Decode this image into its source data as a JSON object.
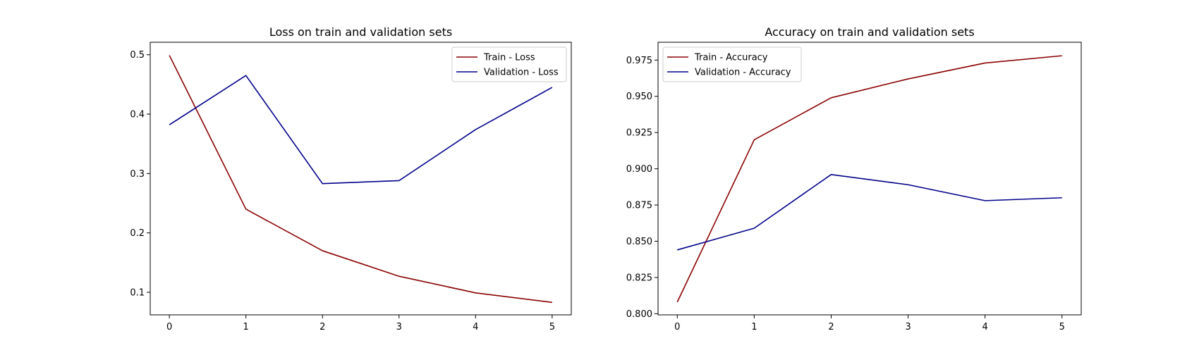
{
  "chart_data": [
    {
      "type": "line",
      "title": "Loss on train and validation sets",
      "xlabel": "",
      "ylabel": "",
      "x": [
        0,
        1,
        2,
        3,
        4,
        5
      ],
      "xlim": [
        -0.25,
        5.25
      ],
      "ylim": [
        0.062,
        0.521
      ],
      "xticks": [
        0,
        1,
        2,
        3,
        4,
        5
      ],
      "yticks": [
        0.1,
        0.2,
        0.3,
        0.4,
        0.5
      ],
      "ytick_labels": [
        "0.1",
        "0.2",
        "0.3",
        "0.4",
        "0.5"
      ],
      "grid": false,
      "legend_position": "top-right",
      "series": [
        {
          "name": "Train - Loss",
          "color": "#8b0000",
          "values": [
            0.499,
            0.24,
            0.17,
            0.127,
            0.099,
            0.083
          ]
        },
        {
          "name": "Validation - Loss",
          "color": "#00008b",
          "values": [
            0.382,
            0.465,
            0.283,
            0.288,
            0.374,
            0.445
          ]
        }
      ]
    },
    {
      "type": "line",
      "title": "Accuracy on train and validation sets",
      "xlabel": "",
      "ylabel": "",
      "x": [
        0,
        1,
        2,
        3,
        4,
        5
      ],
      "xlim": [
        -0.25,
        5.25
      ],
      "ylim": [
        0.7992,
        0.9873
      ],
      "xticks": [
        0,
        1,
        2,
        3,
        4,
        5
      ],
      "yticks": [
        0.8,
        0.825,
        0.85,
        0.875,
        0.9,
        0.925,
        0.95,
        0.975
      ],
      "ytick_labels": [
        "0.800",
        "0.825",
        "0.850",
        "0.875",
        "0.900",
        "0.925",
        "0.950",
        "0.975"
      ],
      "grid": false,
      "legend_position": "top-left",
      "series": [
        {
          "name": "Train - Accuracy",
          "color": "#8b0000",
          "values": [
            0.808,
            0.92,
            0.949,
            0.962,
            0.973,
            0.978
          ]
        },
        {
          "name": "Validation - Accuracy",
          "color": "#00008b",
          "values": [
            0.844,
            0.859,
            0.896,
            0.889,
            0.878,
            0.88
          ]
        }
      ]
    }
  ]
}
